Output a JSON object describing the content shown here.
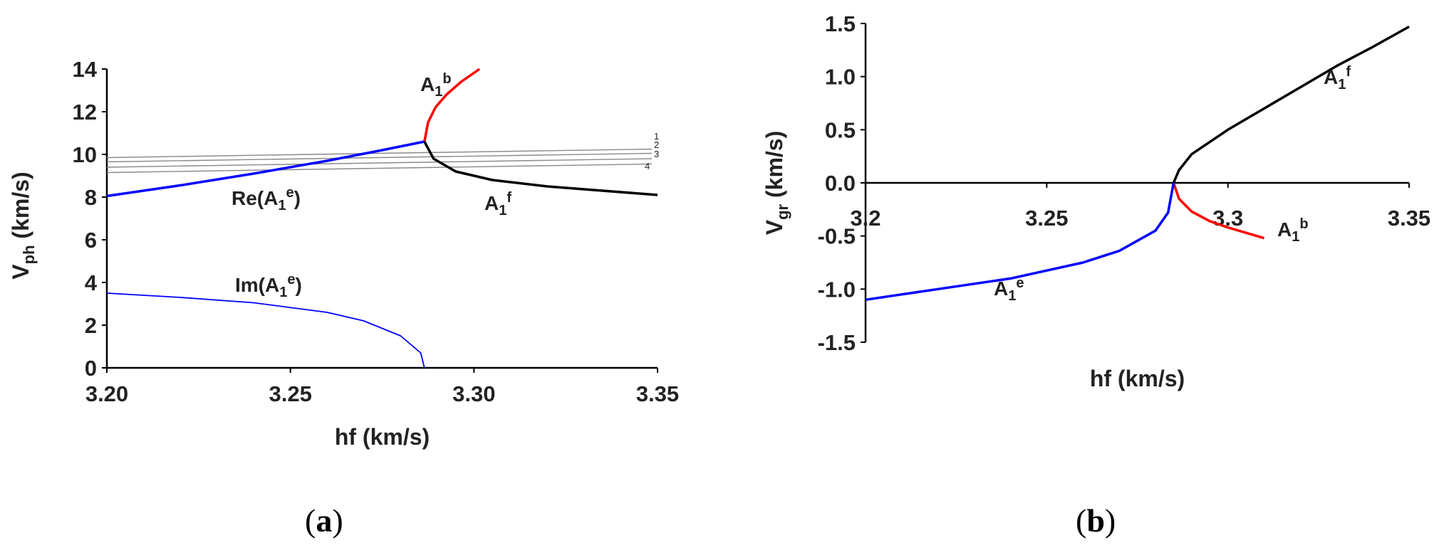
{
  "chart_data": [
    {
      "panel": "(a)",
      "type": "line",
      "xlabel": "hf (km/s)",
      "ylabel": "V_ph (km/s)",
      "ylabel_main": "V",
      "ylabel_sub": "ph",
      "ylabel_rest": " (km/s)",
      "xlim": [
        3.2,
        3.35
      ],
      "ylim": [
        0,
        14
      ],
      "xticks": [
        3.2,
        3.25,
        3.3,
        3.35
      ],
      "xtick_labels": [
        "3.20",
        "3.25",
        "3.30",
        "3.35"
      ],
      "yticks": [
        0,
        2,
        4,
        6,
        8,
        10,
        12,
        14
      ],
      "ytick_labels": [
        "0",
        "2",
        "4",
        "6",
        "8",
        "10",
        "12",
        "14"
      ],
      "grid": false,
      "curves": [
        {
          "label_main": "A",
          "label_sub": "1",
          "label_sup": "b",
          "color": "#ff0000",
          "x": [
            3.2865,
            3.2875,
            3.2895,
            3.2925,
            3.2965,
            3.3015
          ],
          "y": [
            10.6,
            11.5,
            12.2,
            12.8,
            13.4,
            14.0
          ]
        },
        {
          "label_main": "A",
          "label_sub": "1",
          "label_sup": "f",
          "color": "#000000",
          "x": [
            3.2865,
            3.289,
            3.295,
            3.305,
            3.32,
            3.335,
            3.35
          ],
          "y": [
            10.6,
            9.8,
            9.2,
            8.8,
            8.5,
            8.3,
            8.1
          ]
        },
        {
          "label_pre": "Re(",
          "label_main": "A",
          "label_sub": "1",
          "label_sup": "e",
          "label_post": ")",
          "color": "#0000ff",
          "x": [
            3.2,
            3.22,
            3.24,
            3.26,
            3.275,
            3.2865
          ],
          "y": [
            8.05,
            8.55,
            9.1,
            9.7,
            10.2,
            10.6
          ]
        },
        {
          "label_pre": "Im(",
          "label_main": "A",
          "label_sub": "1",
          "label_sup": "e",
          "label_post": ")",
          "color": "#0000ff",
          "x": [
            3.2,
            3.22,
            3.24,
            3.26,
            3.27,
            3.28,
            3.2855,
            3.2865
          ],
          "y": [
            3.5,
            3.3,
            3.05,
            2.6,
            2.2,
            1.5,
            0.7,
            0.0
          ]
        }
      ],
      "gray_lines": [
        {
          "label": "1",
          "y0": 9.85,
          "y1": 10.25
        },
        {
          "label": "2",
          "y0": 9.65,
          "y1": 10.05
        },
        {
          "label": "3",
          "y0": 9.4,
          "y1": 9.8
        },
        {
          "label": "4",
          "y0": 9.15,
          "y1": 9.55
        }
      ]
    },
    {
      "panel": "(b)",
      "type": "line",
      "xlabel": "hf (km/s)",
      "ylabel": "V_gr (km/s)",
      "ylabel_main": "V",
      "ylabel_sub": "gr",
      "ylabel_rest": " (km/s)",
      "xlim": [
        3.2,
        3.35
      ],
      "ylim": [
        -1.5,
        1.5
      ],
      "xticks": [
        3.2,
        3.25,
        3.3,
        3.35
      ],
      "xtick_labels": [
        "3.2",
        "3.25",
        "3.3",
        "3.35"
      ],
      "yticks": [
        -1.5,
        -1.0,
        -0.5,
        0.0,
        0.5,
        1.0,
        1.5
      ],
      "ytick_labels": [
        "-1.5",
        "-1.0",
        "-0.5",
        "0.0",
        "0.5",
        "1.0",
        "1.5"
      ],
      "grid": false,
      "curves": [
        {
          "label_main": "A",
          "label_sub": "1",
          "label_sup": "f",
          "color": "#000000",
          "x": [
            3.285,
            3.2865,
            3.29,
            3.3,
            3.31,
            3.32,
            3.33,
            3.34,
            3.35
          ],
          "y": [
            0.0,
            0.12,
            0.27,
            0.5,
            0.7,
            0.9,
            1.1,
            1.28,
            1.47
          ]
        },
        {
          "label_main": "A",
          "label_sub": "1",
          "label_sup": "b",
          "color": "#ff0000",
          "x": [
            3.285,
            3.2865,
            3.29,
            3.295,
            3.3,
            3.305,
            3.31
          ],
          "y": [
            0.0,
            -0.15,
            -0.27,
            -0.36,
            -0.42,
            -0.47,
            -0.52
          ]
        },
        {
          "label_main": "A",
          "label_sub": "1",
          "label_sup": "e",
          "color": "#0000ff",
          "x": [
            3.2,
            3.22,
            3.24,
            3.26,
            3.27,
            3.28,
            3.2835,
            3.285
          ],
          "y": [
            -1.1,
            -1.0,
            -0.9,
            -0.75,
            -0.64,
            -0.45,
            -0.28,
            0.0
          ]
        }
      ]
    }
  ]
}
